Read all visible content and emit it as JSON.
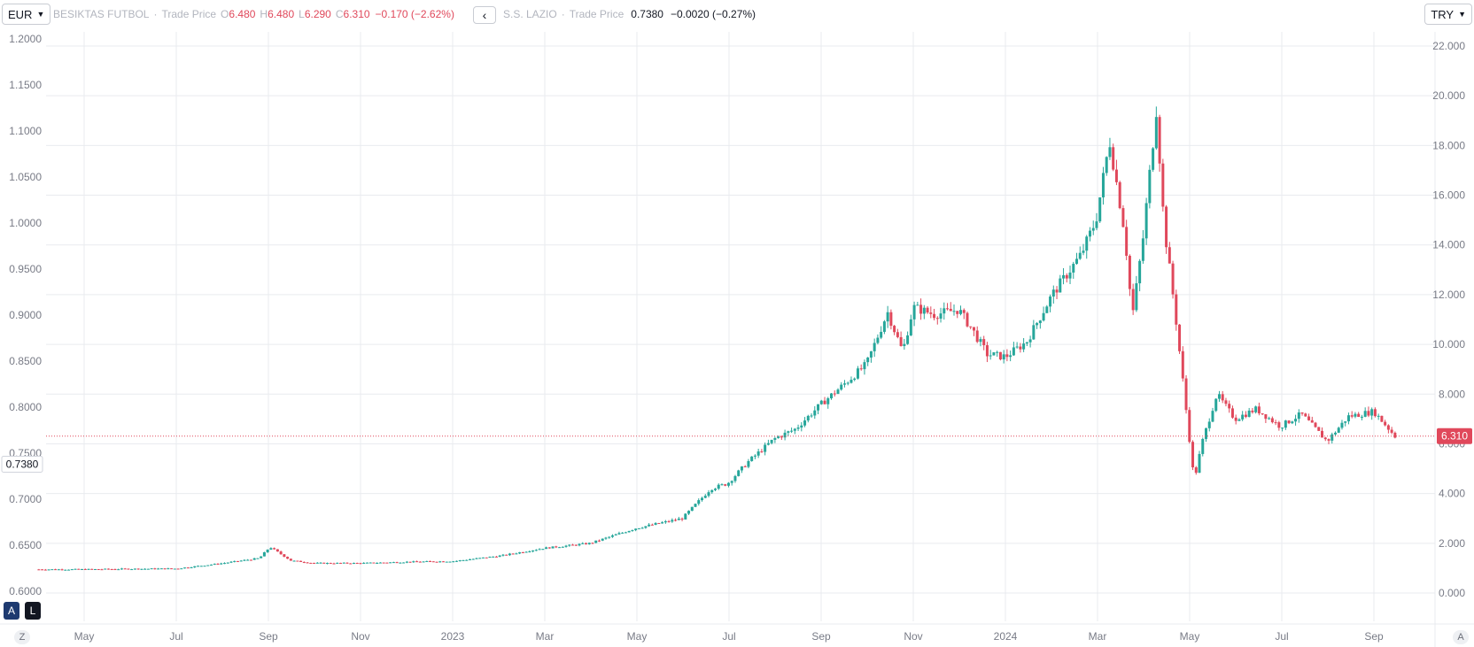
{
  "toolbar": {
    "left_currency": "EUR",
    "right_currency": "TRY"
  },
  "legend": {
    "main_symbol": "BESIKTAS FUTBOL",
    "main_field": "Trade Price",
    "o_label": "O",
    "o_value": "6.480",
    "h_label": "H",
    "h_value": "6.480",
    "l_label": "L",
    "l_value": "6.290",
    "c_label": "C",
    "c_value": "6.310",
    "change": "−0.170 (−2.62%)",
    "compare_symbol": "S.S. LAZIO",
    "compare_field": "Trade Price",
    "compare_value": "0.7380",
    "compare_change": "−0.0020 (−0.27%)"
  },
  "buttons": {
    "auto": "A",
    "log": "L",
    "zoom": "Z",
    "autoscale": "A"
  },
  "colors": {
    "up": "#26a69a",
    "down": "#e0485b",
    "grid": "#e9ebef",
    "last_price_bg": "#e0485b",
    "compare_bg": "#ffffff"
  },
  "chart_data": {
    "type": "candlestick",
    "series": [
      {
        "name": "BESIKTAS FUTBOL",
        "currency": "TRY",
        "scale": "right",
        "last_value": "6.310",
        "x": [
          "2022-04-01",
          "2022-05-01",
          "2022-06-01",
          "2022-07-01",
          "2022-08-01",
          "2022-08-25",
          "2022-09-01",
          "2022-09-15",
          "2022-10-01",
          "2022-11-01",
          "2022-12-01",
          "2023-01-01",
          "2023-02-01",
          "2023-03-01",
          "2023-04-01",
          "2023-05-01",
          "2023-06-01",
          "2023-06-20",
          "2023-07-01",
          "2023-07-15",
          "2023-08-01",
          "2023-08-15",
          "2023-09-01",
          "2023-09-20",
          "2023-10-01",
          "2023-10-15",
          "2023-10-25",
          "2023-11-01",
          "2023-11-15",
          "2023-12-01",
          "2023-12-10",
          "2023-12-20",
          "2024-01-01",
          "2024-01-15",
          "2024-02-01",
          "2024-02-20",
          "2024-03-01",
          "2024-03-10",
          "2024-03-20",
          "2024-03-25",
          "2024-04-01",
          "2024-04-10",
          "2024-04-15",
          "2024-04-22",
          "2024-05-05",
          "2024-05-10",
          "2024-05-20",
          "2024-06-01",
          "2024-06-15",
          "2024-07-01",
          "2024-07-15",
          "2024-08-01",
          "2024-08-15",
          "2024-09-01",
          "2024-09-15"
        ],
        "close": [
          0.95,
          0.95,
          0.97,
          0.98,
          1.2,
          1.4,
          1.85,
          1.3,
          1.2,
          1.2,
          1.25,
          1.28,
          1.5,
          1.8,
          2.0,
          2.6,
          3.0,
          4.2,
          4.4,
          5.3,
          6.2,
          6.6,
          7.6,
          8.6,
          9.2,
          11.3,
          9.7,
          11.5,
          11.2,
          11.4,
          10.6,
          9.6,
          9.5,
          10.1,
          12.0,
          13.6,
          15.0,
          18.2,
          14.5,
          11.1,
          14.2,
          19.5,
          14.8,
          11.5,
          4.5,
          6.0,
          8.0,
          7.0,
          7.4,
          6.7,
          7.2,
          6.1,
          7.1,
          7.3,
          6.31
        ]
      },
      {
        "name": "S.S. LAZIO",
        "currency": "EUR",
        "scale": "left",
        "last_value": "0.7380"
      }
    ],
    "left_axis": {
      "ticks": [
        "1.2000",
        "1.1500",
        "1.1000",
        "1.0500",
        "1.0000",
        "0.9500",
        "0.9000",
        "0.8500",
        "0.8000",
        "0.7500",
        "0.7000",
        "0.6500",
        "0.6000"
      ]
    },
    "right_axis": {
      "ticks": [
        "22.000",
        "20.000",
        "18.000",
        "16.000",
        "14.000",
        "12.000",
        "10.000",
        "8.000",
        "6.000",
        "4.000",
        "2.000",
        "0.000"
      ],
      "ylim": [
        -0.5,
        22
      ]
    },
    "x_axis": {
      "ticks": [
        "May",
        "Jul",
        "Sep",
        "Nov",
        "2023",
        "Mar",
        "May",
        "Jul",
        "Sep",
        "Nov",
        "2024",
        "Mar",
        "May",
        "Jul",
        "Sep"
      ]
    },
    "grid": true
  }
}
